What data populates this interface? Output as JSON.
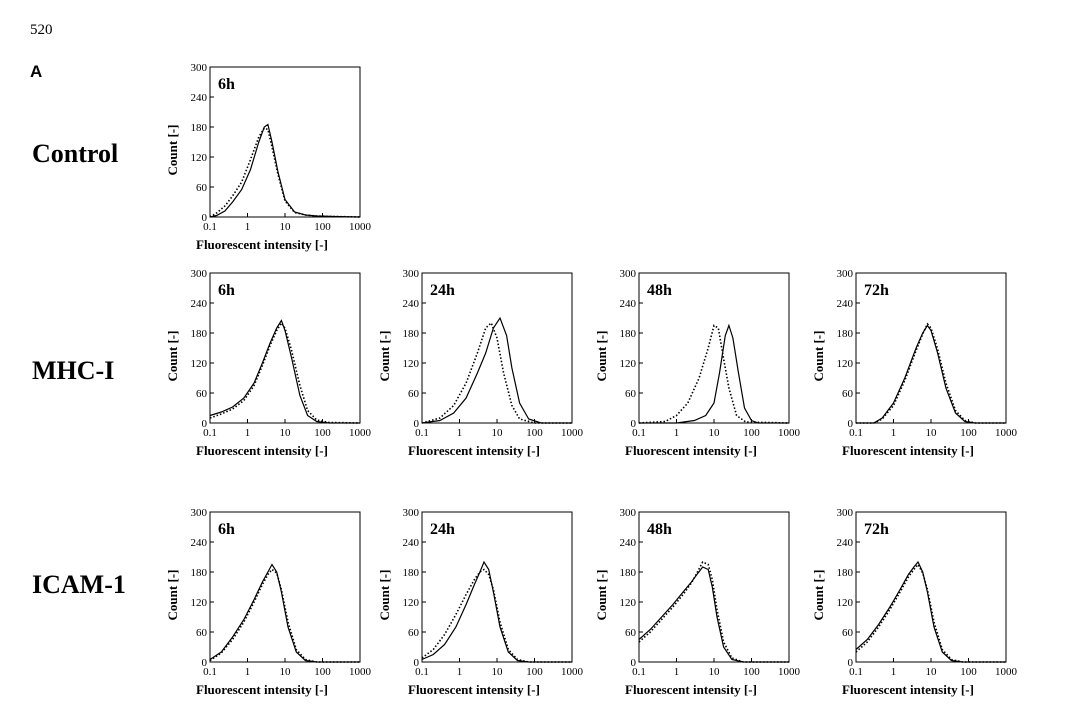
{
  "page_number": "520",
  "panel_letter": "A",
  "row_labels": [
    "Control",
    "MHC-I",
    "ICAM-1"
  ],
  "chart_data": [
    {
      "type": "line",
      "row": "Control",
      "time": "6h",
      "xlabel": "Fluorescent intensity [-]",
      "ylabel": "Count [-]",
      "xscale": "log",
      "xlim": [
        0.1,
        1000
      ],
      "ylim": [
        0,
        300
      ],
      "xticks": [
        "0.1",
        "1",
        "10",
        "100",
        "1000"
      ],
      "yticks": [
        "0",
        "60",
        "120",
        "180",
        "240",
        "300"
      ],
      "series": [
        {
          "style": "solid",
          "x": [
            0.1,
            0.15,
            0.25,
            0.4,
            0.7,
            1.2,
            2.0,
            2.8,
            3.5,
            4.5,
            6.5,
            10,
            18,
            35,
            70,
            200,
            1000
          ],
          "y": [
            0,
            3,
            12,
            30,
            55,
            95,
            150,
            180,
            185,
            150,
            90,
            35,
            10,
            4,
            2,
            1,
            0
          ]
        },
        {
          "style": "dotted",
          "x": [
            0.1,
            0.15,
            0.25,
            0.4,
            0.7,
            1.2,
            2.0,
            2.8,
            3.5,
            4.5,
            6.5,
            10,
            18,
            35,
            70,
            200,
            1000
          ],
          "y": [
            0,
            8,
            22,
            42,
            70,
            115,
            160,
            178,
            175,
            140,
            85,
            32,
            9,
            4,
            2,
            1,
            0
          ]
        }
      ]
    },
    {
      "type": "line",
      "row": "MHC-I",
      "time": "6h",
      "xlabel": "Fluorescent intensity [-]",
      "ylabel": "Count [-]",
      "xscale": "log",
      "xlim": [
        0.1,
        1000
      ],
      "ylim": [
        0,
        300
      ],
      "xticks": [
        "0.1",
        "1",
        "10",
        "100",
        "1000"
      ],
      "yticks": [
        "0",
        "60",
        "120",
        "180",
        "240",
        "300"
      ],
      "series": [
        {
          "style": "solid",
          "x": [
            0.1,
            0.2,
            0.4,
            0.8,
            1.5,
            2.5,
            4,
            6,
            8,
            10,
            15,
            25,
            40,
            70,
            150,
            1000
          ],
          "y": [
            15,
            22,
            32,
            50,
            80,
            120,
            160,
            190,
            205,
            185,
            130,
            55,
            15,
            3,
            0,
            0
          ]
        },
        {
          "style": "dotted",
          "x": [
            0.1,
            0.2,
            0.4,
            0.8,
            1.5,
            2.5,
            4,
            6,
            8,
            10,
            15,
            25,
            40,
            70,
            150,
            1000
          ],
          "y": [
            10,
            18,
            28,
            45,
            75,
            115,
            155,
            185,
            200,
            190,
            145,
            75,
            25,
            6,
            1,
            0
          ]
        }
      ]
    },
    {
      "type": "line",
      "row": "MHC-I",
      "time": "24h",
      "xlabel": "Fluorescent intensity [-]",
      "ylabel": "Count [-]",
      "xscale": "log",
      "xlim": [
        0.1,
        1000
      ],
      "ylim": [
        0,
        300
      ],
      "xticks": [
        "0.1",
        "1",
        "10",
        "100",
        "1000"
      ],
      "yticks": [
        "0",
        "60",
        "120",
        "180",
        "240",
        "300"
      ],
      "series": [
        {
          "style": "solid",
          "x": [
            0.1,
            0.3,
            0.7,
            1.5,
            3,
            5,
            8,
            12,
            18,
            25,
            40,
            70,
            150,
            1000
          ],
          "y": [
            0,
            5,
            20,
            50,
            100,
            140,
            190,
            210,
            175,
            110,
            40,
            8,
            0,
            0
          ]
        },
        {
          "style": "dotted",
          "x": [
            0.1,
            0.3,
            0.7,
            1.5,
            3,
            5,
            7,
            10,
            15,
            25,
            40,
            100,
            1000
          ],
          "y": [
            0,
            10,
            35,
            80,
            140,
            190,
            200,
            170,
            100,
            35,
            8,
            0,
            0
          ]
        }
      ]
    },
    {
      "type": "line",
      "row": "MHC-I",
      "time": "48h",
      "xlabel": "Fluorescent intensity [-]",
      "ylabel": "Count [-]",
      "xscale": "log",
      "xlim": [
        0.1,
        1000
      ],
      "ylim": [
        0,
        300
      ],
      "xticks": [
        "0.1",
        "1",
        "10",
        "100",
        "1000"
      ],
      "yticks": [
        "0",
        "60",
        "120",
        "180",
        "240",
        "300"
      ],
      "series": [
        {
          "style": "solid",
          "x": [
            0.1,
            1,
            3,
            6,
            10,
            14,
            20,
            25,
            32,
            45,
            65,
            100,
            150,
            1000
          ],
          "y": [
            0,
            0,
            5,
            15,
            40,
            100,
            175,
            195,
            170,
            100,
            30,
            5,
            0,
            0
          ]
        },
        {
          "style": "dotted",
          "x": [
            0.1,
            0.5,
            1,
            2,
            4,
            7,
            10,
            13,
            17,
            25,
            40,
            70,
            1000
          ],
          "y": [
            0,
            3,
            15,
            40,
            90,
            150,
            195,
            190,
            140,
            70,
            15,
            2,
            0
          ]
        }
      ]
    },
    {
      "type": "line",
      "row": "MHC-I",
      "time": "72h",
      "xlabel": "Fluorescent intensity [-]",
      "ylabel": "Count [-]",
      "xscale": "log",
      "xlim": [
        0.1,
        1000
      ],
      "ylim": [
        0,
        300
      ],
      "xticks": [
        "0.1",
        "1",
        "10",
        "100",
        "1000"
      ],
      "yticks": [
        "0",
        "60",
        "120",
        "180",
        "240",
        "300"
      ],
      "series": [
        {
          "style": "solid",
          "x": [
            0.1,
            0.3,
            0.5,
            1,
            2,
            4,
            6,
            8,
            10,
            15,
            25,
            45,
            80,
            150,
            1000
          ],
          "y": [
            0,
            0,
            10,
            40,
            90,
            150,
            180,
            195,
            185,
            140,
            70,
            20,
            3,
            0,
            0
          ]
        },
        {
          "style": "dotted",
          "x": [
            0.1,
            0.3,
            0.5,
            1,
            2,
            4,
            6,
            8,
            10,
            15,
            25,
            45,
            80,
            150,
            1000
          ],
          "y": [
            0,
            0,
            8,
            35,
            85,
            145,
            178,
            198,
            190,
            148,
            80,
            25,
            5,
            0,
            0
          ]
        }
      ]
    },
    {
      "type": "line",
      "row": "ICAM-1",
      "time": "6h",
      "xlabel": "Fluorescent intensity [-]",
      "ylabel": "Count [-]",
      "xscale": "log",
      "xlim": [
        0.1,
        1000
      ],
      "ylim": [
        0,
        300
      ],
      "xticks": [
        "0.1",
        "1",
        "10",
        "100",
        "1000"
      ],
      "yticks": [
        "0",
        "60",
        "120",
        "180",
        "240",
        "300"
      ],
      "series": [
        {
          "style": "solid",
          "x": [
            0.1,
            0.2,
            0.4,
            0.8,
            1.5,
            2.5,
            3.5,
            4.5,
            6,
            8,
            12,
            20,
            35,
            70,
            1000
          ],
          "y": [
            5,
            20,
            50,
            85,
            125,
            160,
            180,
            195,
            180,
            140,
            70,
            20,
            3,
            0,
            0
          ]
        },
        {
          "style": "dotted",
          "x": [
            0.1,
            0.2,
            0.4,
            0.8,
            1.5,
            2.5,
            3.5,
            4.5,
            6,
            8,
            12,
            20,
            35,
            70,
            1000
          ],
          "y": [
            3,
            18,
            45,
            80,
            120,
            155,
            175,
            185,
            178,
            145,
            80,
            25,
            5,
            0,
            0
          ]
        }
      ]
    },
    {
      "type": "line",
      "row": "ICAM-1",
      "time": "24h",
      "xlabel": "Fluorescent intensity [-]",
      "ylabel": "Count [-]",
      "xscale": "log",
      "xlim": [
        0.1,
        1000
      ],
      "ylim": [
        0,
        300
      ],
      "xticks": [
        "0.1",
        "1",
        "10",
        "100",
        "1000"
      ],
      "yticks": [
        "0",
        "60",
        "120",
        "180",
        "240",
        "300"
      ],
      "series": [
        {
          "style": "solid",
          "x": [
            0.1,
            0.2,
            0.4,
            0.8,
            1.5,
            2.5,
            3.5,
            4.5,
            6,
            8,
            12,
            20,
            35,
            70,
            1000
          ],
          "y": [
            5,
            15,
            35,
            70,
            115,
            155,
            180,
            200,
            185,
            140,
            70,
            20,
            3,
            0,
            0
          ]
        },
        {
          "style": "dotted",
          "x": [
            0.1,
            0.2,
            0.4,
            0.8,
            1.5,
            2.5,
            3.5,
            4.5,
            6,
            8,
            12,
            20,
            35,
            70,
            1000
          ],
          "y": [
            8,
            25,
            55,
            95,
            135,
            165,
            180,
            185,
            175,
            145,
            80,
            25,
            5,
            0,
            0
          ]
        }
      ]
    },
    {
      "type": "line",
      "row": "ICAM-1",
      "time": "48h",
      "xlabel": "Fluorescent intensity [-]",
      "ylabel": "Count [-]",
      "xscale": "log",
      "xlim": [
        0.1,
        1000
      ],
      "ylim": [
        0,
        300
      ],
      "xticks": [
        "0.1",
        "1",
        "10",
        "100",
        "1000"
      ],
      "yticks": [
        "0",
        "60",
        "120",
        "180",
        "240",
        "300"
      ],
      "series": [
        {
          "style": "solid",
          "x": [
            0.1,
            0.2,
            0.4,
            0.8,
            1.5,
            2.5,
            3.5,
            5,
            7,
            9,
            12,
            18,
            30,
            60,
            1000
          ],
          "y": [
            45,
            65,
            90,
            115,
            140,
            160,
            175,
            190,
            185,
            150,
            90,
            30,
            5,
            0,
            0
          ]
        },
        {
          "style": "dotted",
          "x": [
            0.1,
            0.2,
            0.4,
            0.8,
            1.5,
            2.5,
            3.5,
            5,
            7,
            9,
            12,
            18,
            30,
            60,
            1000
          ],
          "y": [
            40,
            60,
            85,
            110,
            135,
            158,
            178,
            200,
            195,
            165,
            105,
            40,
            8,
            0,
            0
          ]
        }
      ]
    },
    {
      "type": "line",
      "row": "ICAM-1",
      "time": "72h",
      "xlabel": "Fluorescent intensity [-]",
      "ylabel": "Count [-]",
      "xscale": "log",
      "xlim": [
        0.1,
        1000
      ],
      "ylim": [
        0,
        300
      ],
      "xticks": [
        "0.1",
        "1",
        "10",
        "100",
        "1000"
      ],
      "yticks": [
        "0",
        "60",
        "120",
        "180",
        "240",
        "300"
      ],
      "series": [
        {
          "style": "solid",
          "x": [
            0.1,
            0.2,
            0.4,
            0.8,
            1.5,
            2.5,
            3.5,
            4.5,
            6,
            8,
            12,
            20,
            35,
            70,
            1000
          ],
          "y": [
            25,
            45,
            75,
            110,
            145,
            175,
            190,
            200,
            180,
            140,
            70,
            20,
            3,
            0,
            0
          ]
        },
        {
          "style": "dotted",
          "x": [
            0.1,
            0.2,
            0.4,
            0.8,
            1.5,
            2.5,
            3.5,
            4.5,
            6,
            8,
            12,
            20,
            35,
            70,
            1000
          ],
          "y": [
            20,
            40,
            70,
            105,
            140,
            170,
            185,
            195,
            178,
            145,
            80,
            25,
            5,
            0,
            0
          ]
        }
      ]
    }
  ]
}
